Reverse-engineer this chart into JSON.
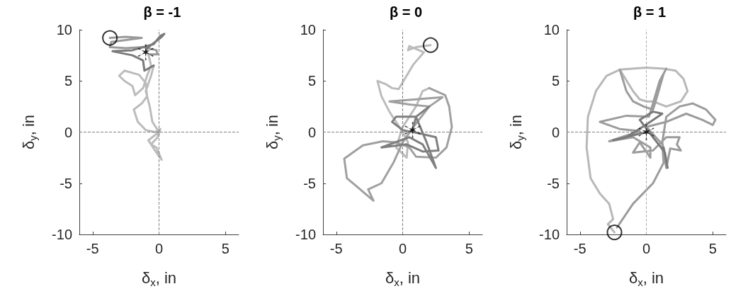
{
  "chart_data": [
    {
      "type": "line",
      "title": "β = -1",
      "xlabel": "δ$_{x}$, in",
      "ylabel": "δ$_{y}$, in",
      "xlim": [
        -6,
        6
      ],
      "xticks": [
        -5,
        0,
        5
      ],
      "ylim": [
        -10,
        10
      ],
      "yticks": [
        -10,
        -5,
        0,
        5,
        10
      ],
      "marker": "none",
      "line_style": "solid",
      "ref_lines": [
        {
          "axis": "x",
          "value": 0,
          "color": "#808080",
          "line_style": "dashed"
        },
        {
          "axis": "y",
          "value": 0,
          "color": "#808080",
          "line_style": "dashed"
        }
      ],
      "series": [
        {
          "color": "#9a9a9a",
          "x": [
            -3.7,
            -2.5,
            -1.3,
            -2.5,
            -3.6,
            -3.7,
            -2.5,
            -1.2,
            -0.2,
            -0.1,
            -0.8
          ],
          "values": [
            9.2,
            9.3,
            9.2,
            9.0,
            8.8,
            8.3,
            8.2,
            8.3,
            8.0,
            7.6,
            7.6
          ]
        },
        {
          "color": "#bcbcbc",
          "x": [
            -0.8,
            -0.6,
            -0.9,
            -1.2,
            -1.8,
            -2.0,
            -2.6,
            -3.0,
            -2.6,
            -1.5,
            -1.0,
            -0.9,
            -1.3,
            -1.9,
            -1.6,
            -1.0,
            -0.3,
            0.1,
            -0.1,
            -0.6,
            -0.2,
            0.2,
            -0.3,
            -0.8,
            0,
            -0.5,
            -0.7,
            -1.0,
            -0.6,
            -0.4
          ],
          "values": [
            7.6,
            6.5,
            5.5,
            4.3,
            3.6,
            4.5,
            5.0,
            5.5,
            6.0,
            5.6,
            4.8,
            3.5,
            2.8,
            2.2,
            1.0,
            0.2,
            0.0,
            0.3,
            -0.5,
            -1.2,
            -1.5,
            -2.7,
            -1.8,
            -0.8,
            0,
            1.0,
            2.5,
            4.0,
            5.5,
            6.5
          ]
        },
        {
          "color": "#7a7a7a",
          "x": [
            -0.4,
            -1.1,
            -1.2,
            -2.0,
            -3.5,
            -2.0,
            -0.4,
            0.1,
            0.4,
            0.2,
            -0.9,
            -1.0
          ],
          "values": [
            6.5,
            6.0,
            7.0,
            7.5,
            7.9,
            8.0,
            8.6,
            9.4,
            9.6,
            9.3,
            8.2,
            7.8
          ]
        },
        {
          "type": "scatter",
          "marker": "circle",
          "color": "#000000",
          "x": [
            -3.7
          ],
          "values": [
            9.2
          ]
        },
        {
          "type": "scatter",
          "marker": "cross",
          "color": "#000000",
          "x": [
            -1.0
          ],
          "values": [
            7.8
          ]
        }
      ]
    },
    {
      "type": "line",
      "title": "β = 0",
      "xlabel": "δ$_{x}$, in",
      "ylabel": "δ$_{y}$, in",
      "xlim": [
        -6,
        6
      ],
      "xticks": [
        -5,
        0,
        5
      ],
      "ylim": [
        -10,
        10
      ],
      "yticks": [
        -10,
        -5,
        0,
        5,
        10
      ],
      "marker": "none",
      "line_style": "solid",
      "ref_lines": [
        {
          "axis": "x",
          "value": 0,
          "color": "#808080",
          "line_style": "dashed"
        },
        {
          "axis": "y",
          "value": 0,
          "color": "#808080",
          "line_style": "dashed"
        }
      ],
      "series": [
        {
          "color": "#bcbcbc",
          "x": [
            2.1,
            1.0,
            0.4,
            0.5,
            1.6,
            0.8,
            0.2,
            -0.3,
            -0.8,
            -1.3,
            -1.9,
            -1.6,
            -1.0,
            -0.5,
            0,
            0.4,
            0.3,
            -0.5,
            0.0,
            1.0,
            1.5,
            2.0
          ],
          "values": [
            8.5,
            8.3,
            8.0,
            8.4,
            7.8,
            6.6,
            5.3,
            4.2,
            4.3,
            4.7,
            5.0,
            3.5,
            2.0,
            1.0,
            0,
            -1.0,
            -2.5,
            -1.5,
            0.5,
            2.5,
            4.0,
            4.3
          ]
        },
        {
          "color": "#a0a0a0",
          "x": [
            2.0,
            3.2,
            3.5,
            3.7,
            3.3,
            2.5,
            1.0,
            0.5,
            -0.5,
            -1.5,
            -3.0,
            -4.4,
            -4.2,
            -3.2,
            -2.2,
            -2.6,
            -1.6,
            -0.7,
            0,
            0.8,
            2.0,
            3.0,
            1.0,
            -1.0,
            0.5,
            2.0
          ],
          "values": [
            4.3,
            3.6,
            2.5,
            0.5,
            -1.5,
            -2.5,
            -2.4,
            -1.5,
            -1.0,
            -0.9,
            -1.3,
            -2.6,
            -4.5,
            -5.6,
            -6.7,
            -5.6,
            -5.0,
            -3.0,
            -1.0,
            0.5,
            2.5,
            3.4,
            3.2,
            3.0,
            2.7,
            2.5
          ]
        },
        {
          "color": "#7f7f7f",
          "x": [
            2.0,
            1.0,
            -0.5,
            -0.8,
            0,
            1.5,
            2.5,
            2.7,
            1.5,
            0.3,
            -1.6,
            0.5,
            1.5,
            2.5,
            1.8,
            1.0,
            0.75
          ],
          "values": [
            2.5,
            1.5,
            1.5,
            1.0,
            0.2,
            -0.2,
            -0.5,
            -1.8,
            -1.9,
            -1.2,
            -1.5,
            -0.5,
            -1.2,
            -3.5,
            -1.0,
            1.5,
            0.2
          ]
        },
        {
          "type": "scatter",
          "marker": "circle",
          "color": "#000000",
          "x": [
            2.1
          ],
          "values": [
            8.5
          ]
        },
        {
          "type": "scatter",
          "marker": "cross",
          "color": "#000000",
          "x": [
            0.75
          ],
          "values": [
            0.2
          ]
        }
      ]
    },
    {
      "type": "line",
      "title": "β = 1",
      "xlabel": "δ$_{x}$, in",
      "ylabel": "δ$_{y}$, in",
      "xlim": [
        -6,
        6
      ],
      "xticks": [
        -5,
        0,
        5
      ],
      "ylim": [
        -10,
        10
      ],
      "yticks": [
        -10,
        -5,
        0,
        5,
        10
      ],
      "marker": "none",
      "line_style": "solid",
      "ref_lines": [
        {
          "axis": "x",
          "value": 0,
          "color": "#b0b0b0",
          "line_style": "dashed"
        },
        {
          "axis": "y",
          "value": 0,
          "color": "#808080",
          "line_style": "dashed"
        }
      ],
      "series": [
        {
          "color": "#b8b8b8",
          "x": [
            -2.4,
            -2.9,
            -2.5,
            -2.8,
            -3.5,
            -4.2,
            -4.5,
            -4.4,
            -3.8,
            -3.0,
            -2.0,
            0,
            1.3,
            2.2,
            2.8,
            3.1,
            2.6,
            1.5,
            0.5,
            0,
            -0.5,
            -1.0,
            -2.0
          ],
          "values": [
            -9.8,
            -9.0,
            -8.5,
            -7.0,
            -6.0,
            -4.5,
            -1.5,
            1.5,
            4.0,
            5.5,
            6.1,
            6.3,
            6.2,
            6.0,
            5.2,
            4.0,
            3.0,
            2.5,
            3.0,
            3.0,
            3.2,
            4.0,
            6.1
          ]
        },
        {
          "color": "#9c9c9c",
          "x": [
            -2.0,
            -1.5,
            -1.0,
            -0.2,
            0.5,
            0.7,
            1.3,
            1.5,
            1.0,
            0.2,
            -1.5,
            -3.5,
            -2.0,
            -0.5,
            -2.8,
            -1.0,
            0.3,
            0.3,
            -0.5,
            -1.0,
            0.5,
            1.5,
            2.5,
            2.3,
            2.6,
            1.8,
            1.5,
            1.2,
            1.5,
            2.5,
            3.5,
            4.5,
            5.2,
            5.0,
            4.2,
            3.0,
            1.5,
            0,
            1.2,
            1.3,
            0.5,
            -1.0,
            -2.2
          ],
          "values": [
            6.1,
            4.0,
            3.0,
            2.5,
            2.2,
            3.0,
            5.7,
            6.2,
            5.0,
            1.5,
            1.6,
            1.0,
            0.3,
            0.1,
            -0.9,
            -0.5,
            -1.5,
            -2.5,
            -1.0,
            -2.0,
            -1.8,
            -0.5,
            -0.5,
            -1.2,
            -1.8,
            -1.6,
            -3.5,
            -1.0,
            1.5,
            2.5,
            2.8,
            2.2,
            1.2,
            0.7,
            1.2,
            1.8,
            1.0,
            0.5,
            -1.2,
            -3.0,
            -5.0,
            -7.0,
            -9.3
          ]
        },
        {
          "color": "#7a7a7a",
          "x": [
            1.3,
            1.6,
            1.4,
            0.5,
            -0.5,
            0.5,
            1.2,
            0.3,
            -1.5,
            -2.5,
            0
          ],
          "values": [
            -1.5,
            -3.5,
            -2.0,
            -0.5,
            1.2,
            2.0,
            1.8,
            1.0,
            -0.5,
            -0.8,
            0
          ]
        },
        {
          "type": "scatter",
          "marker": "circle",
          "color": "#000000",
          "x": [
            -2.4
          ],
          "values": [
            -9.8
          ]
        },
        {
          "type": "scatter",
          "marker": "cross",
          "color": "#000000",
          "x": [
            0
          ],
          "values": [
            0
          ]
        }
      ]
    }
  ]
}
